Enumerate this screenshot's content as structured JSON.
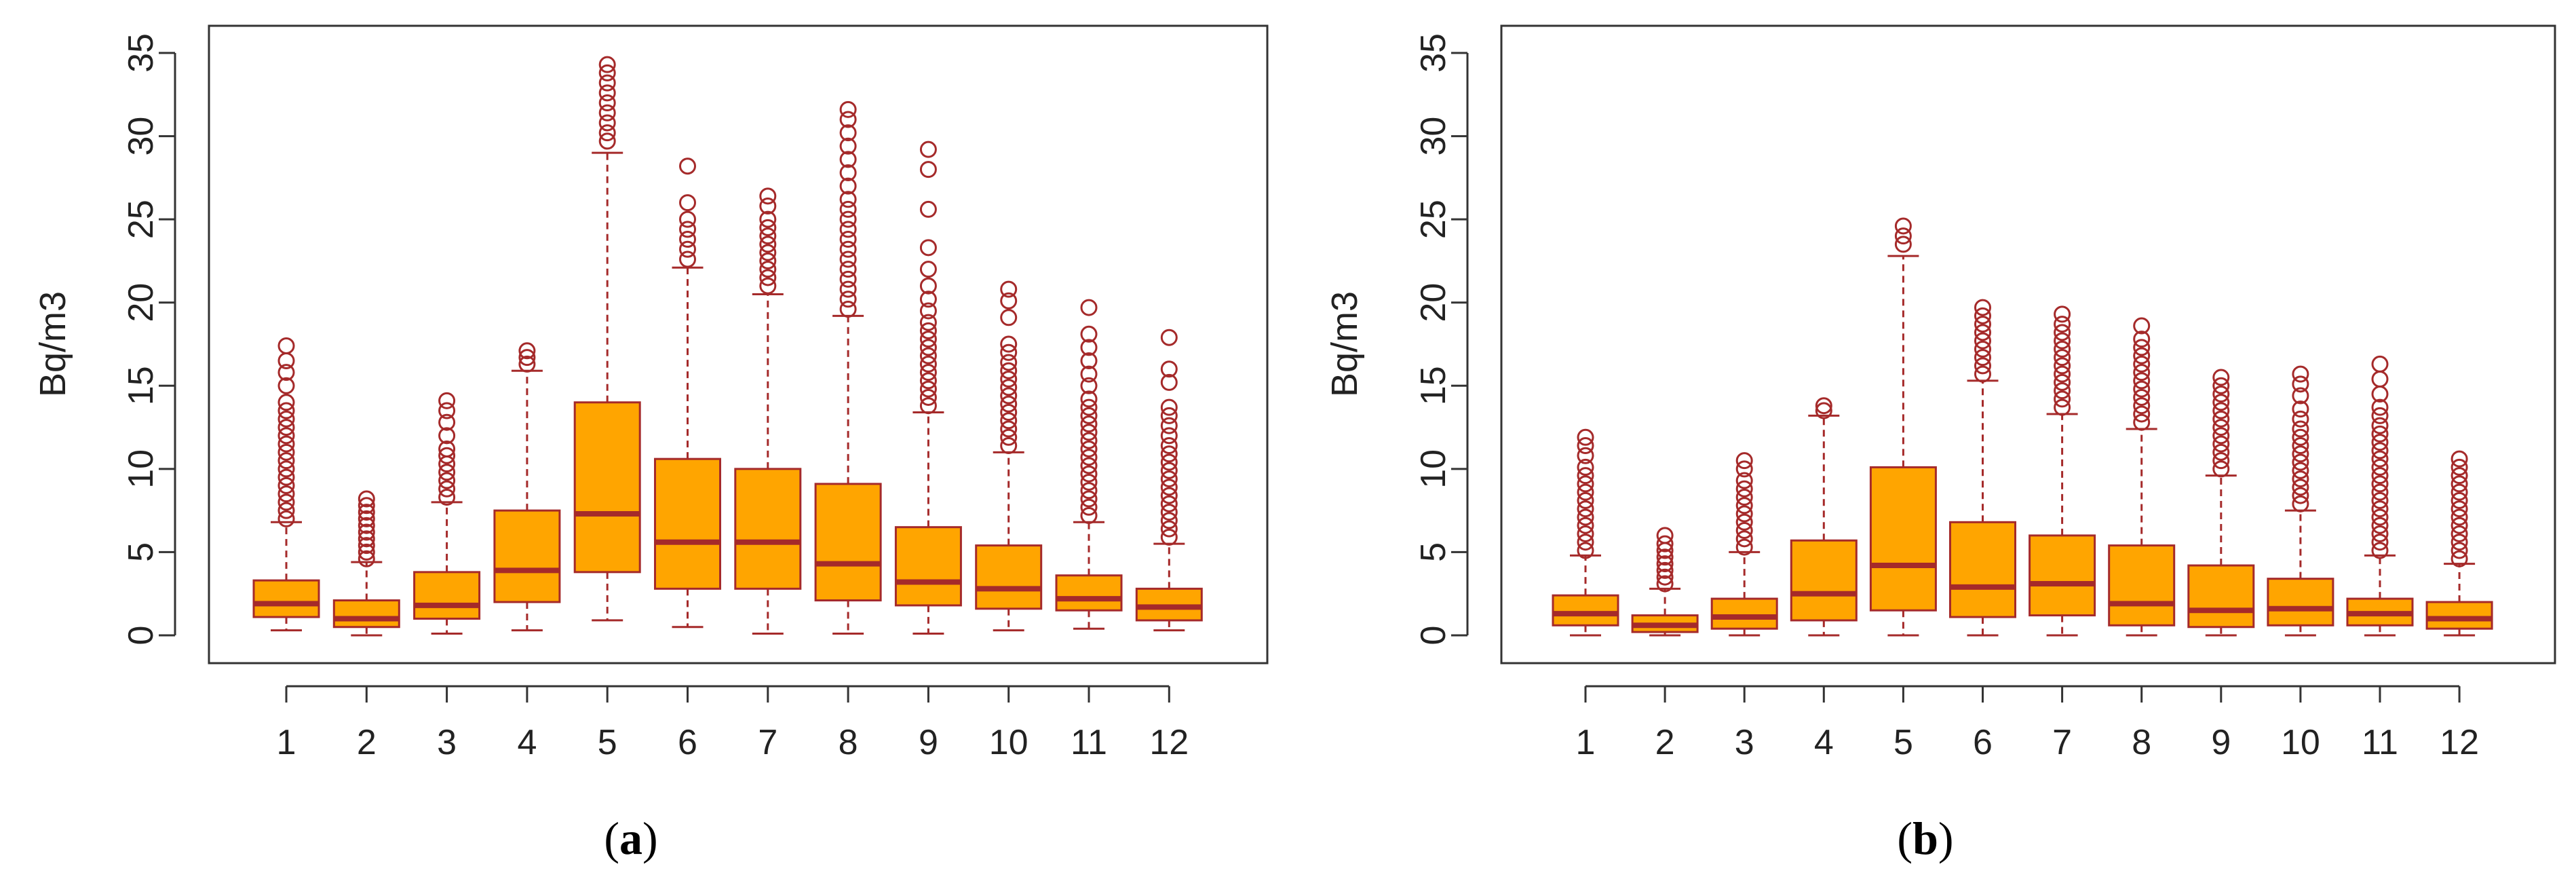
{
  "colors": {
    "box_fill": "#FFA500",
    "box_stroke": "#A52A2A",
    "frame": "#333333"
  },
  "chart_data": [
    {
      "type": "box",
      "panel_label": [
        "(",
        "a",
        ")"
      ],
      "xlabel": "",
      "ylabel": "Bq/m3",
      "ylim": [
        0,
        35
      ],
      "yticks": [
        "0",
        "5",
        "10",
        "15",
        "20",
        "25",
        "30",
        "35"
      ],
      "categories": [
        "1",
        "2",
        "3",
        "4",
        "5",
        "6",
        "7",
        "8",
        "9",
        "10",
        "11",
        "12"
      ],
      "boxes": [
        {
          "min": 0.3,
          "q1": 1.1,
          "median": 1.9,
          "q3": 3.3,
          "max": 6.8,
          "outliers": [
            7,
            7.5,
            8,
            8.5,
            9,
            9.5,
            10,
            10.5,
            11,
            11.5,
            12,
            12.5,
            13,
            13.5,
            14,
            15,
            15.8,
            16.5,
            17.4
          ]
        },
        {
          "min": 0.0,
          "q1": 0.5,
          "median": 1.0,
          "q3": 2.1,
          "max": 4.4,
          "outliers": [
            4.6,
            5,
            5.4,
            5.8,
            6.2,
            6.6,
            7,
            7.4,
            7.8,
            8.2
          ]
        },
        {
          "min": 0.1,
          "q1": 1.0,
          "median": 1.8,
          "q3": 3.8,
          "max": 8.0,
          "outliers": [
            8.3,
            8.8,
            9.3,
            9.8,
            10.3,
            10.8,
            11.2,
            12,
            12.8,
            13.5,
            14.1
          ]
        },
        {
          "min": 0.3,
          "q1": 2.0,
          "median": 3.9,
          "q3": 7.5,
          "max": 15.9,
          "outliers": [
            16.3,
            16.7,
            17.1
          ]
        },
        {
          "min": 0.9,
          "q1": 3.8,
          "median": 7.3,
          "q3": 14.0,
          "max": 29.0,
          "outliers": [
            29.7,
            30.2,
            30.8,
            31.4,
            32,
            32.6,
            33.2,
            33.8,
            34.3
          ]
        },
        {
          "min": 0.5,
          "q1": 2.8,
          "median": 5.6,
          "q3": 10.6,
          "max": 22.1,
          "outliers": [
            22.6,
            23.2,
            23.8,
            24.4,
            25,
            26,
            28.2
          ]
        },
        {
          "min": 0.1,
          "q1": 2.8,
          "median": 5.6,
          "q3": 10.0,
          "max": 20.5,
          "outliers": [
            21,
            21.5,
            22,
            22.5,
            23,
            23.5,
            24,
            24.5,
            25,
            25.8,
            26.4
          ]
        },
        {
          "min": 0.1,
          "q1": 2.1,
          "median": 4.3,
          "q3": 9.1,
          "max": 19.2,
          "outliers": [
            19.6,
            20.2,
            20.8,
            21.4,
            22,
            22.6,
            23.2,
            23.8,
            24.4,
            25,
            25.6,
            26.2,
            27,
            27.8,
            28.6,
            29.4,
            30.2,
            31,
            31.6
          ]
        },
        {
          "min": 0.1,
          "q1": 1.8,
          "median": 3.2,
          "q3": 6.5,
          "max": 13.4,
          "outliers": [
            13.8,
            14.3,
            14.8,
            15.3,
            15.8,
            16.3,
            16.8,
            17.3,
            17.8,
            18.3,
            18.8,
            19.5,
            20.2,
            21,
            22,
            23.3,
            25.6,
            28,
            29.2
          ]
        },
        {
          "min": 0.3,
          "q1": 1.6,
          "median": 2.8,
          "q3": 5.4,
          "max": 11.0,
          "outliers": [
            11.4,
            11.9,
            12.4,
            12.9,
            13.4,
            13.9,
            14.4,
            14.9,
            15.4,
            15.9,
            16.4,
            17,
            17.5,
            19.1,
            20.1,
            20.8
          ]
        },
        {
          "min": 0.4,
          "q1": 1.5,
          "median": 2.2,
          "q3": 3.6,
          "max": 6.8,
          "outliers": [
            7.2,
            7.7,
            8.2,
            8.7,
            9.2,
            9.7,
            10.2,
            10.7,
            11.2,
            11.7,
            12.2,
            12.7,
            13.2,
            13.7,
            14.2,
            15,
            15.7,
            16.5,
            17.3,
            18.1,
            19.7
          ]
        },
        {
          "min": 0.3,
          "q1": 0.9,
          "median": 1.7,
          "q3": 2.8,
          "max": 5.5,
          "outliers": [
            5.9,
            6.4,
            6.9,
            7.4,
            7.9,
            8.4,
            8.9,
            9.4,
            9.9,
            10.4,
            10.9,
            11.4,
            12,
            12.6,
            13.2,
            13.7,
            15.2,
            16,
            17.9
          ]
        }
      ]
    },
    {
      "type": "box",
      "panel_label": [
        "(",
        "b",
        ")"
      ],
      "xlabel": "",
      "ylabel": "Bq/m3",
      "ylim": [
        0,
        35
      ],
      "yticks": [
        "0",
        "5",
        "10",
        "15",
        "20",
        "25",
        "30",
        "35"
      ],
      "categories": [
        "1",
        "2",
        "3",
        "4",
        "5",
        "6",
        "7",
        "8",
        "9",
        "10",
        "11",
        "12"
      ],
      "boxes": [
        {
          "min": 0.0,
          "q1": 0.6,
          "median": 1.3,
          "q3": 2.4,
          "max": 4.8,
          "outliers": [
            5.1,
            5.6,
            6.1,
            6.6,
            7.1,
            7.6,
            8.1,
            8.6,
            9.1,
            9.6,
            10.1,
            10.8,
            11.4,
            11.9
          ]
        },
        {
          "min": 0.0,
          "q1": 0.2,
          "median": 0.6,
          "q3": 1.2,
          "max": 2.8,
          "outliers": [
            3.1,
            3.5,
            3.9,
            4.3,
            4.7,
            5.1,
            5.5,
            6.0
          ]
        },
        {
          "min": 0.0,
          "q1": 0.4,
          "median": 1.1,
          "q3": 2.2,
          "max": 5.0,
          "outliers": [
            5.3,
            5.8,
            6.3,
            6.8,
            7.3,
            7.8,
            8.3,
            8.8,
            9.3,
            10.0,
            10.5
          ]
        },
        {
          "min": 0.0,
          "q1": 0.9,
          "median": 2.5,
          "q3": 5.7,
          "max": 13.2,
          "outliers": [
            13.5,
            13.8
          ]
        },
        {
          "min": 0.0,
          "q1": 1.5,
          "median": 4.2,
          "q3": 10.1,
          "max": 22.8,
          "outliers": [
            23.5,
            24.0,
            24.6
          ]
        },
        {
          "min": 0.0,
          "q1": 1.1,
          "median": 2.9,
          "q3": 6.8,
          "max": 15.3,
          "outliers": [
            15.7,
            16.2,
            16.7,
            17.2,
            17.7,
            18.2,
            18.7,
            19.2,
            19.7
          ]
        },
        {
          "min": 0.0,
          "q1": 1.2,
          "median": 3.1,
          "q3": 6.0,
          "max": 13.3,
          "outliers": [
            13.7,
            14.2,
            14.7,
            15.2,
            15.7,
            16.2,
            16.7,
            17.2,
            17.7,
            18.2,
            18.7,
            19.3
          ]
        },
        {
          "min": 0.0,
          "q1": 0.6,
          "median": 1.9,
          "q3": 5.4,
          "max": 12.4,
          "outliers": [
            12.8,
            13.3,
            13.8,
            14.3,
            14.8,
            15.3,
            15.8,
            16.3,
            16.8,
            17.3,
            17.8,
            18.6
          ]
        },
        {
          "min": 0.0,
          "q1": 0.5,
          "median": 1.5,
          "q3": 4.2,
          "max": 9.6,
          "outliers": [
            10.0,
            10.5,
            11.0,
            11.5,
            12.0,
            12.5,
            13.0,
            13.5,
            14.0,
            14.5,
            15.0,
            15.5
          ]
        },
        {
          "min": 0.0,
          "q1": 0.6,
          "median": 1.6,
          "q3": 3.4,
          "max": 7.5,
          "outliers": [
            7.9,
            8.4,
            8.9,
            9.4,
            9.9,
            10.4,
            10.9,
            11.4,
            11.9,
            12.4,
            13.0,
            13.6,
            14.4,
            15.1,
            15.7
          ]
        },
        {
          "min": 0.0,
          "q1": 0.6,
          "median": 1.3,
          "q3": 2.2,
          "max": 4.8,
          "outliers": [
            5.1,
            5.6,
            6.1,
            6.6,
            7.1,
            7.6,
            8.1,
            8.6,
            9.1,
            9.6,
            10.1,
            10.6,
            11.1,
            11.6,
            12.1,
            12.6,
            13.2,
            13.7,
            14.5,
            15.4,
            16.3
          ]
        },
        {
          "min": 0.0,
          "q1": 0.4,
          "median": 1.0,
          "q3": 2.0,
          "max": 4.3,
          "outliers": [
            4.6,
            5.1,
            5.6,
            6.1,
            6.6,
            7.1,
            7.6,
            8.1,
            8.6,
            9.1,
            9.6,
            10.1,
            10.6
          ]
        }
      ]
    }
  ]
}
